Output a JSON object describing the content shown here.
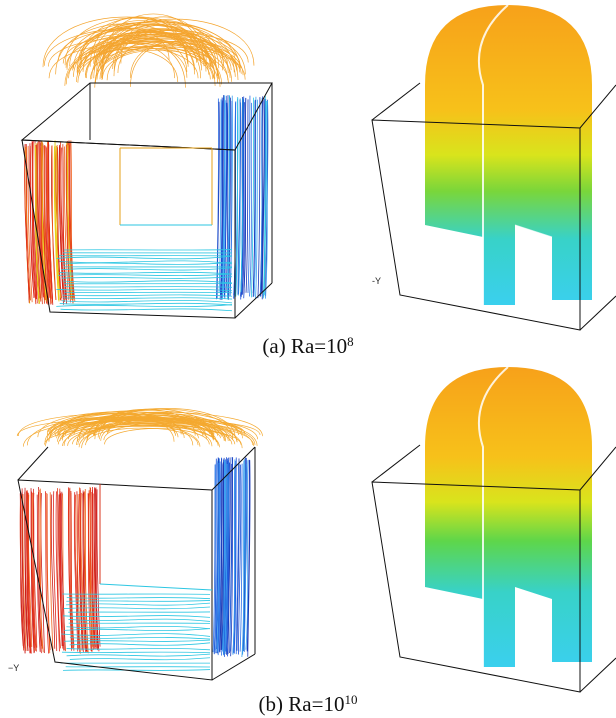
{
  "figure": {
    "panels": [
      {
        "id": "a",
        "caption_prefix": "(a) Ra=10",
        "caption_exponent": "8",
        "axis_label": "-Y"
      },
      {
        "id": "b",
        "caption_prefix": "(b) Ra=10",
        "caption_exponent": "10",
        "axis_label": "−Y"
      }
    ]
  },
  "colors": {
    "hot": "#e0261c",
    "warm": "#f6a21a",
    "mid": "#e8e21a",
    "green": "#3ec94a",
    "cool": "#22c8e8",
    "cold": "#1a4fd6",
    "frame": "#111111"
  }
}
